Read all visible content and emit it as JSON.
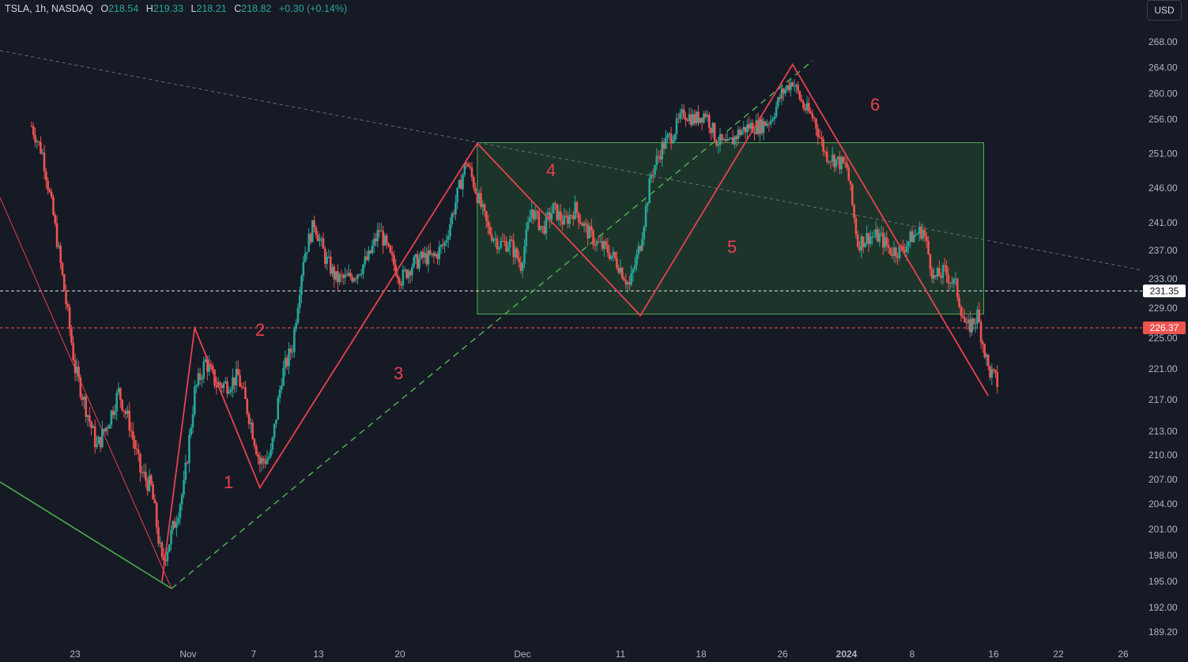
{
  "header": {
    "symbol": "TSLA, 1h, NASDAQ",
    "open_label": "O",
    "open": "218.54",
    "high_label": "H",
    "high": "219.33",
    "low_label": "L",
    "low": "218.21",
    "close_label": "C",
    "close": "218.82",
    "change": "+0.30 (+0.14%)"
  },
  "currency_button": "USD",
  "colors": {
    "background": "#161a25",
    "up": "#26a69a",
    "down": "#ef5350",
    "wave": "#e8414f",
    "green_trend": "#4caf50",
    "box_fill": "#1f3a2c",
    "box_border": "#4caf50"
  },
  "chart_data": {
    "type": "candlestick",
    "title": "",
    "y_ticks": [
      "268.00",
      "264.00",
      "260.00",
      "256.00",
      "251.00",
      "246.00",
      "241.00",
      "237.00",
      "233.00",
      "229.00",
      "225.00",
      "221.00",
      "217.00",
      "213.00",
      "210.00",
      "207.00",
      "204.00",
      "201.00",
      "198.00",
      "195.00",
      "192.00",
      "189.20"
    ],
    "x_ticks": [
      "23",
      "Nov",
      "7",
      "13",
      "20",
      "Dec",
      "11",
      "18",
      "26",
      "2024",
      "8",
      "16",
      "22",
      "26"
    ],
    "price_tags": [
      {
        "value": "231.35",
        "style": "white"
      },
      {
        "value": "226.37",
        "style": "red"
      }
    ],
    "wave_labels": [
      "1",
      "2",
      "3",
      "4",
      "5",
      "6"
    ],
    "wave_points": [
      {
        "date": "Oct 31",
        "price": 195.0
      },
      {
        "date": "Nov 3",
        "price": 226.37
      },
      {
        "date": "Nov 9",
        "price": 206.0
      },
      {
        "date": "Nov 29",
        "price": 252.5
      },
      {
        "date": "Dec 14",
        "price": 228.0
      },
      {
        "date": "Dec 28",
        "price": 264.5
      },
      {
        "date": "Jan 15",
        "price": 217.5
      }
    ],
    "box": {
      "date_from": "Nov 29",
      "date_to": "Jan 14",
      "price_from": 228.2,
      "price_to": 252.6
    },
    "horizontal_levels": [
      231.35,
      226.37
    ],
    "close_path": [
      {
        "date": "Oct 19",
        "price": 255
      },
      {
        "date": "Oct 20",
        "price": 251
      },
      {
        "date": "Oct 21",
        "price": 242
      },
      {
        "date": "Oct 23",
        "price": 221
      },
      {
        "date": "Oct 24",
        "price": 216
      },
      {
        "date": "Oct 25",
        "price": 211
      },
      {
        "date": "Oct 26",
        "price": 214
      },
      {
        "date": "Oct 27",
        "price": 218
      },
      {
        "date": "Oct 28",
        "price": 214
      },
      {
        "date": "Oct 29",
        "price": 208
      },
      {
        "date": "Oct 30",
        "price": 206
      },
      {
        "date": "Oct 31",
        "price": 197
      },
      {
        "date": "Nov 1",
        "price": 201
      },
      {
        "date": "Nov 2",
        "price": 206
      },
      {
        "date": "Nov 3",
        "price": 218
      },
      {
        "date": "Nov 4",
        "price": 222
      },
      {
        "date": "Nov 5",
        "price": 219
      },
      {
        "date": "Nov 6",
        "price": 219
      },
      {
        "date": "Nov 7",
        "price": 220
      },
      {
        "date": "Nov 8",
        "price": 215
      },
      {
        "date": "Nov 9",
        "price": 209
      },
      {
        "date": "Nov 10",
        "price": 210
      },
      {
        "date": "Nov 11",
        "price": 220
      },
      {
        "date": "Nov 12",
        "price": 224
      },
      {
        "date": "Nov 13",
        "price": 236
      },
      {
        "date": "Nov 14",
        "price": 241
      },
      {
        "date": "Nov 15",
        "price": 236
      },
      {
        "date": "Nov 16",
        "price": 233
      },
      {
        "date": "Nov 17",
        "price": 233
      },
      {
        "date": "Nov 18",
        "price": 234
      },
      {
        "date": "Nov 19",
        "price": 236
      },
      {
        "date": "Nov 20",
        "price": 240
      },
      {
        "date": "Nov 21",
        "price": 236
      },
      {
        "date": "Nov 22",
        "price": 233
      },
      {
        "date": "Nov 23",
        "price": 235
      },
      {
        "date": "Nov 24",
        "price": 236
      },
      {
        "date": "Nov 25",
        "price": 236
      },
      {
        "date": "Nov 26",
        "price": 238
      },
      {
        "date": "Nov 27",
        "price": 244
      },
      {
        "date": "Nov 28",
        "price": 250
      },
      {
        "date": "Nov 29",
        "price": 245
      },
      {
        "date": "Nov 30",
        "price": 240
      },
      {
        "date": "Dec 1",
        "price": 238
      },
      {
        "date": "Dec 2",
        "price": 238
      },
      {
        "date": "Dec 3",
        "price": 235
      },
      {
        "date": "Dec 4",
        "price": 243
      },
      {
        "date": "Dec 5",
        "price": 240
      },
      {
        "date": "Dec 6",
        "price": 243
      },
      {
        "date": "Dec 7",
        "price": 241
      },
      {
        "date": "Dec 8",
        "price": 243
      },
      {
        "date": "Dec 9",
        "price": 240
      },
      {
        "date": "Dec 10",
        "price": 238
      },
      {
        "date": "Dec 11",
        "price": 237
      },
      {
        "date": "Dec 12",
        "price": 235
      },
      {
        "date": "Dec 13",
        "price": 232
      },
      {
        "date": "Dec 14",
        "price": 238
      },
      {
        "date": "Dec 15",
        "price": 248
      },
      {
        "date": "Dec 16",
        "price": 252
      },
      {
        "date": "Dec 17",
        "price": 254
      },
      {
        "date": "Dec 18",
        "price": 257
      },
      {
        "date": "Dec 19",
        "price": 256
      },
      {
        "date": "Dec 20",
        "price": 257
      },
      {
        "date": "Dec 21",
        "price": 253
      },
      {
        "date": "Dec 22",
        "price": 252
      },
      {
        "date": "Dec 23",
        "price": 254
      },
      {
        "date": "Dec 24",
        "price": 255
      },
      {
        "date": "Dec 25",
        "price": 255
      },
      {
        "date": "Dec 26",
        "price": 256
      },
      {
        "date": "Dec 27",
        "price": 260
      },
      {
        "date": "Dec 28",
        "price": 262
      },
      {
        "date": "Dec 29",
        "price": 258
      },
      {
        "date": "Dec 30",
        "price": 256
      },
      {
        "date": "Dec 31",
        "price": 251
      },
      {
        "date": "Jan 1",
        "price": 250
      },
      {
        "date": "Jan 2",
        "price": 249
      },
      {
        "date": "Jan 3",
        "price": 238
      },
      {
        "date": "Jan 4",
        "price": 239
      },
      {
        "date": "Jan 5",
        "price": 239
      },
      {
        "date": "Jan 6",
        "price": 237
      },
      {
        "date": "Jan 7",
        "price": 237
      },
      {
        "date": "Jan 8",
        "price": 239
      },
      {
        "date": "Jan 9",
        "price": 240
      },
      {
        "date": "Jan 10",
        "price": 233
      },
      {
        "date": "Jan 11",
        "price": 234
      },
      {
        "date": "Jan 12",
        "price": 232
      },
      {
        "date": "Jan 13",
        "price": 226
      },
      {
        "date": "Jan 14",
        "price": 228
      },
      {
        "date": "Jan 15",
        "price": 221
      },
      {
        "date": "Jan 16",
        "price": 218.82
      }
    ]
  }
}
